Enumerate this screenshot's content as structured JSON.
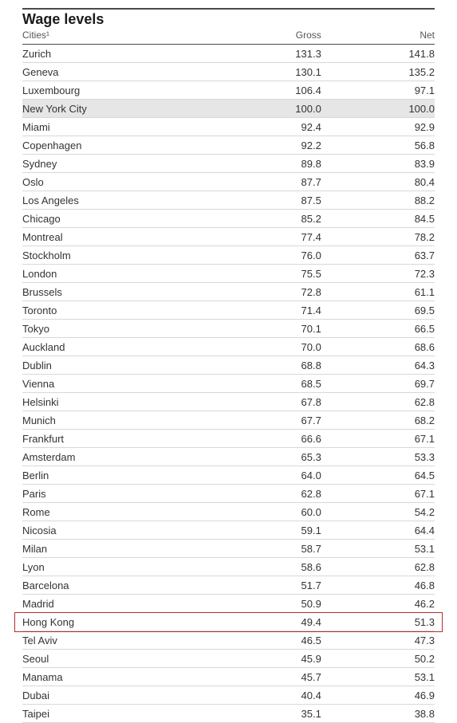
{
  "title": "Wage levels",
  "columns": {
    "city": "Cities¹",
    "gross": "Gross",
    "net": "Net"
  },
  "highlight_gray_city": "New York City",
  "highlight_red_city": "Hong Kong",
  "colors": {
    "background": "#ffffff",
    "text": "#333333",
    "border_top": "#4a4a4a",
    "row_divider": "#d8d8d8",
    "gray_highlight": "#e6e6e6",
    "red_box": "#b03030"
  },
  "rows": [
    {
      "city": "Zurich",
      "gross": "131.3",
      "net": "141.8"
    },
    {
      "city": "Geneva",
      "gross": "130.1",
      "net": "135.2"
    },
    {
      "city": "Luxembourg",
      "gross": "106.4",
      "net": "97.1"
    },
    {
      "city": "New York City",
      "gross": "100.0",
      "net": "100.0"
    },
    {
      "city": "Miami",
      "gross": "92.4",
      "net": "92.9"
    },
    {
      "city": "Copenhagen",
      "gross": "92.2",
      "net": "56.8"
    },
    {
      "city": "Sydney",
      "gross": "89.8",
      "net": "83.9"
    },
    {
      "city": "Oslo",
      "gross": "87.7",
      "net": "80.4"
    },
    {
      "city": "Los Angeles",
      "gross": "87.5",
      "net": "88.2"
    },
    {
      "city": "Chicago",
      "gross": "85.2",
      "net": "84.5"
    },
    {
      "city": "Montreal",
      "gross": "77.4",
      "net": "78.2"
    },
    {
      "city": "Stockholm",
      "gross": "76.0",
      "net": "63.7"
    },
    {
      "city": "London",
      "gross": "75.5",
      "net": "72.3"
    },
    {
      "city": "Brussels",
      "gross": "72.8",
      "net": "61.1"
    },
    {
      "city": "Toronto",
      "gross": "71.4",
      "net": "69.5"
    },
    {
      "city": "Tokyo",
      "gross": "70.1",
      "net": "66.5"
    },
    {
      "city": "Auckland",
      "gross": "70.0",
      "net": "68.6"
    },
    {
      "city": "Dublin",
      "gross": "68.8",
      "net": "64.3"
    },
    {
      "city": "Vienna",
      "gross": "68.5",
      "net": "69.7"
    },
    {
      "city": "Helsinki",
      "gross": "67.8",
      "net": "62.8"
    },
    {
      "city": "Munich",
      "gross": "67.7",
      "net": "68.2"
    },
    {
      "city": "Frankfurt",
      "gross": "66.6",
      "net": "67.1"
    },
    {
      "city": "Amsterdam",
      "gross": "65.3",
      "net": "53.3"
    },
    {
      "city": "Berlin",
      "gross": "64.0",
      "net": "64.5"
    },
    {
      "city": "Paris",
      "gross": "62.8",
      "net": "67.1"
    },
    {
      "city": "Rome",
      "gross": "60.0",
      "net": "54.2"
    },
    {
      "city": "Nicosia",
      "gross": "59.1",
      "net": "64.4"
    },
    {
      "city": "Milan",
      "gross": "58.7",
      "net": "53.1"
    },
    {
      "city": "Lyon",
      "gross": "58.6",
      "net": "62.8"
    },
    {
      "city": "Barcelona",
      "gross": "51.7",
      "net": "46.8"
    },
    {
      "city": "Madrid",
      "gross": "50.9",
      "net": "46.2"
    },
    {
      "city": "Hong Kong",
      "gross": "49.4",
      "net": "51.3"
    },
    {
      "city": "Tel Aviv",
      "gross": "46.5",
      "net": "47.3"
    },
    {
      "city": "Seoul",
      "gross": "45.9",
      "net": "50.2"
    },
    {
      "city": "Manama",
      "gross": "45.7",
      "net": "53.1"
    },
    {
      "city": "Dubai",
      "gross": "40.4",
      "net": "46.9"
    },
    {
      "city": "Taipei",
      "gross": "35.1",
      "net": "38.8"
    }
  ]
}
